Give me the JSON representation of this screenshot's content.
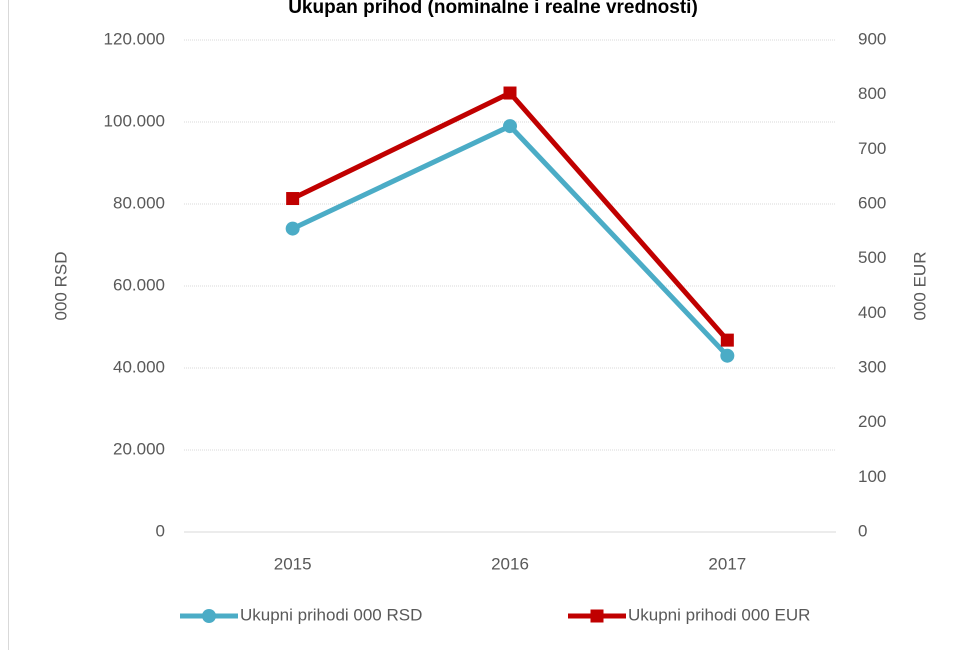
{
  "chart_data": {
    "type": "line",
    "title": "Ukupan prihod (nominalne i realne vrednosti)",
    "categories": [
      "2015",
      "2016",
      "2017"
    ],
    "series": [
      {
        "name": "Ukupni prihodi 000 RSD",
        "color": "#4bacc6",
        "marker": "circle",
        "values": [
          74000,
          99000,
          43000
        ]
      },
      {
        "name": "Ukupni prihodi 000 EUR",
        "color": "#c00000",
        "marker": "square",
        "axis": "y2",
        "values": [
          610,
          803,
          351
        ]
      }
    ],
    "ylabel": "000 RSD",
    "y2label": "000 EUR",
    "ylim": [
      0,
      120000
    ],
    "yticks": [
      0,
      {
        "value": 20000,
        "label": "20.000"
      },
      {
        "value": 40000,
        "label": "40.000"
      },
      {
        "value": 60000,
        "label": "60.000"
      },
      {
        "value": 80000,
        "label": "80.000"
      },
      {
        "value": 100000,
        "label": "100.000"
      },
      {
        "value": 120000,
        "label": "120.000"
      }
    ],
    "y2lim": [
      0,
      900
    ],
    "y2ticks": [
      0,
      100,
      200,
      300,
      400,
      500,
      600,
      700,
      800,
      900
    ],
    "grid": true,
    "legend": "bottom"
  }
}
